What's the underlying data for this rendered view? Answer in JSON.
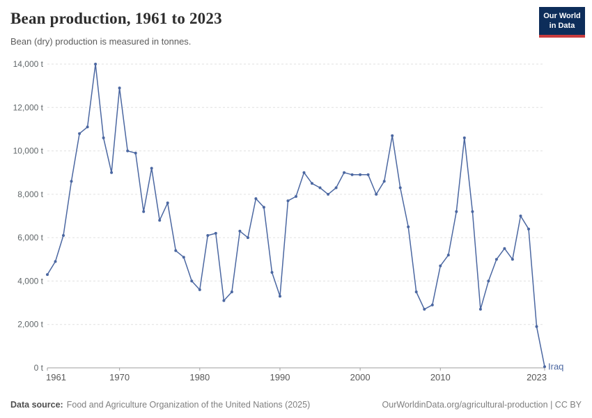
{
  "logo": {
    "line1": "Our World",
    "line2": "in Data",
    "bg_color": "#0d2d5a",
    "accent_color": "#c93c3e"
  },
  "chart_data": {
    "type": "line",
    "title": "Bean production, 1961 to 2023",
    "subtitle": "Bean (dry) production is measured in tonnes.",
    "unit": "t",
    "grid": "horizontal-dashed",
    "legend_position": "end-of-line-label",
    "x_range": [
      1961,
      2023
    ],
    "ylim": [
      0,
      14000
    ],
    "yticks": [
      {
        "value": 0,
        "label": "0 t"
      },
      {
        "value": 2000,
        "label": "2,000 t"
      },
      {
        "value": 4000,
        "label": "4,000 t"
      },
      {
        "value": 6000,
        "label": "6,000 t"
      },
      {
        "value": 8000,
        "label": "8,000 t"
      },
      {
        "value": 10000,
        "label": "10,000 t"
      },
      {
        "value": 12000,
        "label": "12,000 t"
      },
      {
        "value": 14000,
        "label": "14,000 t"
      }
    ],
    "xticks": [
      {
        "value": 1961,
        "label": "1961"
      },
      {
        "value": 1970,
        "label": "1970"
      },
      {
        "value": 1980,
        "label": "1980"
      },
      {
        "value": 1990,
        "label": "1990"
      },
      {
        "value": 2000,
        "label": "2000"
      },
      {
        "value": 2010,
        "label": "2010"
      },
      {
        "value": 2023,
        "label": "2023"
      }
    ],
    "x": [
      1961,
      1962,
      1963,
      1964,
      1965,
      1966,
      1967,
      1968,
      1969,
      1970,
      1971,
      1972,
      1973,
      1974,
      1975,
      1976,
      1977,
      1978,
      1979,
      1980,
      1981,
      1982,
      1983,
      1984,
      1985,
      1986,
      1987,
      1988,
      1989,
      1990,
      1991,
      1992,
      1993,
      1994,
      1995,
      1996,
      1997,
      1998,
      1999,
      2000,
      2001,
      2002,
      2003,
      2004,
      2005,
      2006,
      2007,
      2008,
      2009,
      2010,
      2011,
      2012,
      2013,
      2014,
      2015,
      2016,
      2017,
      2018,
      2019,
      2020,
      2021,
      2022,
      2023
    ],
    "series": [
      {
        "name": "Iraq",
        "color": "#4b67a1",
        "values": [
          4300,
          4900,
          6100,
          8600,
          10800,
          11100,
          14000,
          10600,
          9000,
          12900,
          10000,
          9900,
          7200,
          9200,
          6800,
          7600,
          5400,
          5100,
          4000,
          3600,
          6100,
          6200,
          3100,
          3500,
          6300,
          6000,
          7800,
          7400,
          4400,
          3300,
          7700,
          7900,
          9000,
          8500,
          8300,
          8000,
          8300,
          9000,
          8900,
          8900,
          8900,
          8000,
          8600,
          10700,
          8300,
          6500,
          3500,
          2700,
          2900,
          4700,
          5200,
          7200,
          10600,
          7200,
          2700,
          4000,
          5000,
          5500,
          5000,
          7000,
          6400,
          1900,
          50
        ]
      }
    ]
  },
  "footer": {
    "source_label": "Data source:",
    "source": "Food and Agriculture Organization of the United Nations (2025)",
    "link": "OurWorldinData.org/agricultural-production",
    "license_suffix": " | CC BY"
  }
}
